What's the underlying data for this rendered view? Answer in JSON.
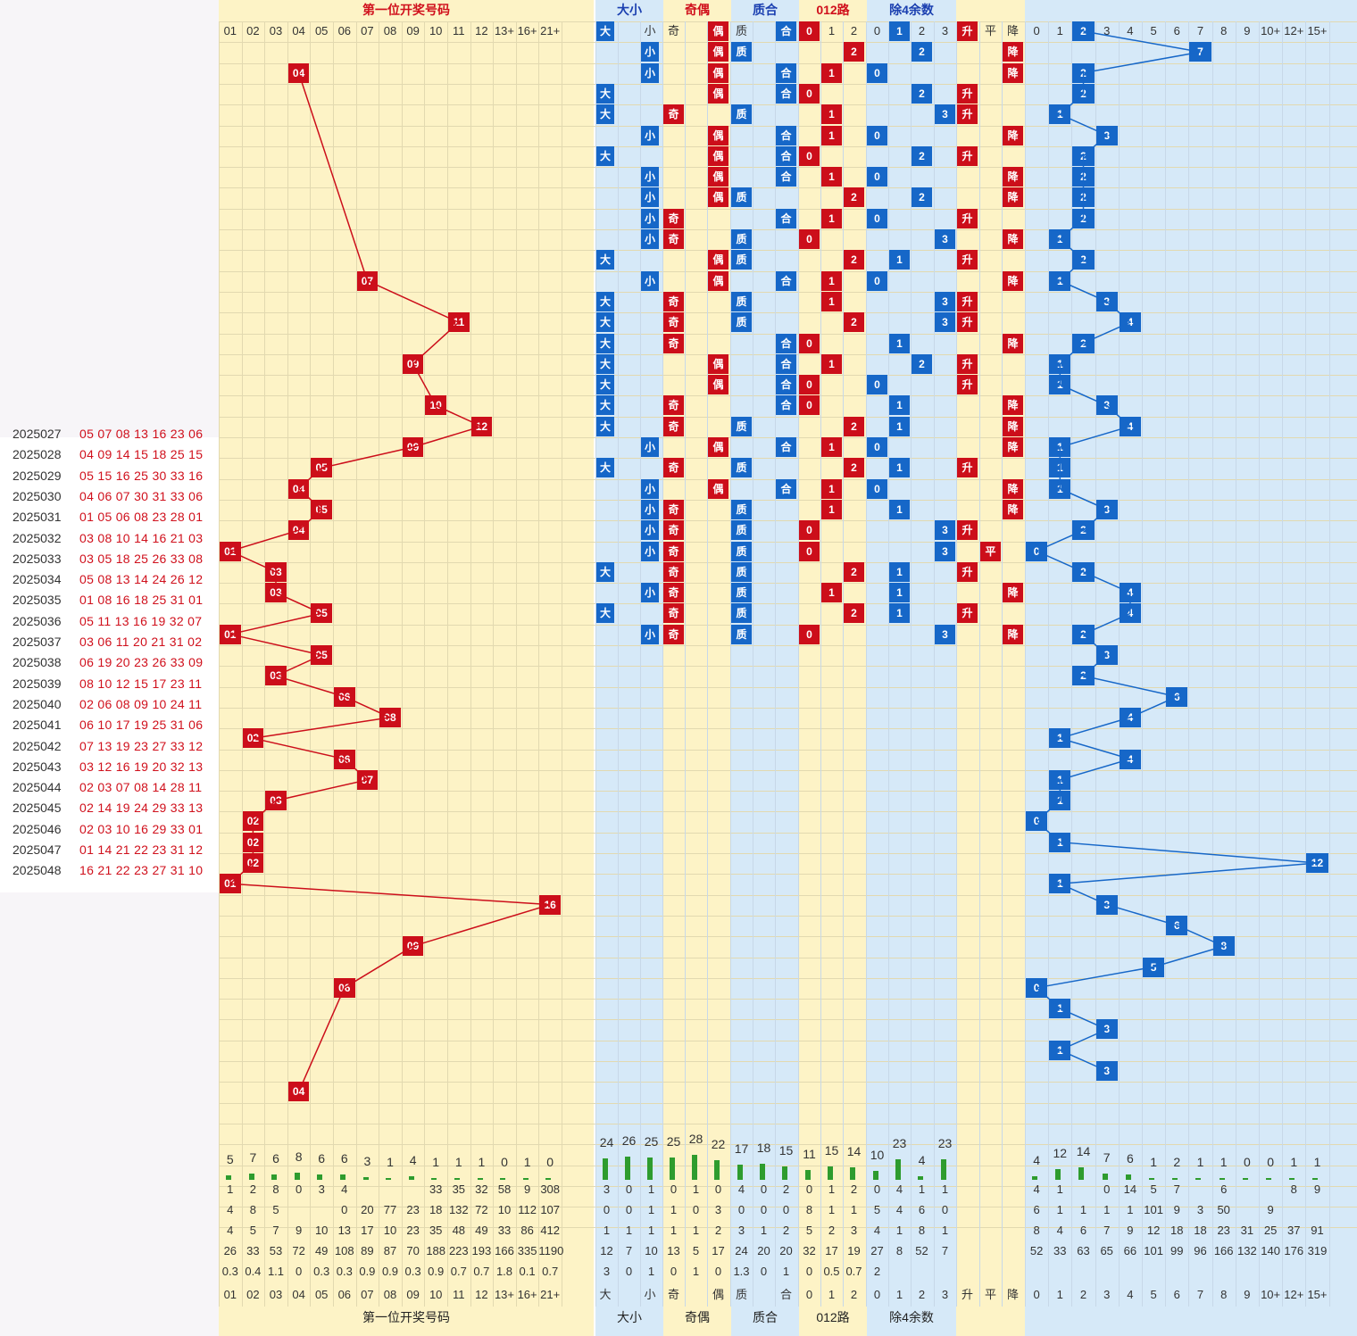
{
  "title": "第一位开奖号码",
  "section_headers": [
    "第一位开奖号码",
    "大小",
    "奇偶",
    "质合",
    "012路",
    "除4余数"
  ],
  "left_dates": [
    "2025027",
    "2025028",
    "2025029",
    "2025030",
    "2025031",
    "2025032",
    "2025033",
    "2025034",
    "2025035",
    "2025036",
    "2025037",
    "2025038",
    "2025039",
    "2025040",
    "2025041",
    "2025042",
    "2025043",
    "2025044",
    "2025045",
    "2025046",
    "2025047",
    "2025048"
  ],
  "left_nums": [
    "05 07 08 13 16 23 06",
    "04 09 14 15 18 25 15",
    "05 15 16 25 30 33 16",
    "04 06 07 30 31 33 06",
    "01 05 06 08 23 28 01",
    "03 08 10 14 16 21 03",
    "03 05 18 25 26 33 08",
    "05 08 13 14 24 26 12",
    "01 08 16 18 25 31 01",
    "05 11 13 16 19 32 07",
    "03 06 11 20 21 31 02",
    "06 19 20 23 26 33 09",
    "08 10 12 15 17 23 11",
    "02 06 08 09 10 24 11",
    "06 10 17 19 25 31 06",
    "07 13 19 23 27 33 12",
    "03 12 16 19 20 32 13",
    "02 03 07 08 14 28 11",
    "02 14 19 24 29 33 13",
    "02 03 10 16 29 33 01",
    "01 14 21 22 23 31 12",
    "16 21 22 23 27 31 10"
  ],
  "col_headers_a": [
    "01",
    "02",
    "03",
    "04",
    "05",
    "06",
    "07",
    "08",
    "09",
    "10",
    "11",
    "12",
    "13+",
    "16+",
    "21+"
  ],
  "col_headers_b": [
    "大",
    "",
    "小",
    "奇",
    "",
    "偶",
    "质",
    "",
    "合",
    "0",
    "1",
    "2",
    "0",
    "1",
    "2",
    "3",
    "升",
    "平",
    "降"
  ],
  "col_headers_c": [
    "0",
    "1",
    "2",
    "3",
    "4",
    "5",
    "6",
    "7",
    "8",
    "9",
    "10+",
    "12+",
    "15+"
  ],
  "stats_section_a": {
    "count_row": [
      "5",
      "7",
      "6",
      "8",
      "6",
      "6",
      "3",
      "1",
      "4",
      "1",
      "1",
      "1",
      "0",
      "1",
      "0"
    ],
    "rows": [
      [
        "1",
        "2",
        "8",
        "0",
        "3",
        "4",
        "",
        "",
        "",
        "33",
        "35",
        "32",
        "58",
        "9",
        "308"
      ],
      [
        "4",
        "8",
        "5",
        "",
        "",
        "0",
        "20",
        "77",
        "23",
        "18",
        "132",
        "72",
        "10",
        "112",
        "107"
      ],
      [
        "4",
        "5",
        "7",
        "9",
        "10",
        "13",
        "17",
        "10",
        "23",
        "35",
        "48",
        "49",
        "33",
        "86",
        "412"
      ],
      [
        "26",
        "33",
        "53",
        "72",
        "49",
        "108",
        "89",
        "87",
        "70",
        "188",
        "223",
        "193",
        "166",
        "335",
        "1190"
      ],
      [
        "0.3",
        "0.4",
        "1.1",
        "0",
        "0.3",
        "0.3",
        "0.9",
        "0.9",
        "0.3",
        "0.9",
        "0.7",
        "0.7",
        "1.8",
        "0.1",
        "0.7"
      ]
    ]
  },
  "stats_section_b": {
    "count_row": [
      "24",
      "26",
      "25",
      "25",
      "28",
      "22",
      "17",
      "18",
      "15",
      "11",
      "15",
      "14",
      "10",
      "23",
      "4",
      "23"
    ],
    "rows": [
      [
        "3",
        "0",
        "1",
        "0",
        "1",
        "0",
        "4",
        "0",
        "2",
        "0",
        "1",
        "2",
        "0",
        "4",
        "1",
        "1"
      ],
      [
        "0",
        "0",
        "1",
        "1",
        "0",
        "3",
        "0",
        "0",
        "0",
        "8",
        "1",
        "1",
        "5",
        "4",
        "6",
        "0"
      ],
      [
        "1",
        "1",
        "1",
        "1",
        "1",
        "2",
        "3",
        "1",
        "2",
        "5",
        "2",
        "3",
        "4",
        "1",
        "8",
        "1"
      ],
      [
        "12",
        "7",
        "10",
        "13",
        "5",
        "17",
        "24",
        "20",
        "20",
        "32",
        "17",
        "19",
        "27",
        "8",
        "52",
        "7"
      ],
      [
        "3",
        "0",
        "1",
        "0",
        "1",
        "0",
        "1.3",
        "0",
        "1",
        "0",
        "0.5",
        "0.7",
        "2",
        "",
        "",
        ""
      ]
    ]
  },
  "stats_section_c": {
    "count_row": [
      "4",
      "12",
      "14",
      "7",
      "6",
      "1",
      "2",
      "1",
      "1",
      "0",
      "0",
      "1",
      "1"
    ],
    "rows": [
      [
        "4",
        "1",
        "",
        "0",
        "14",
        "5",
        "7",
        "",
        "6",
        "",
        "",
        "8",
        "9"
      ],
      [
        "6",
        "1",
        "1",
        "1",
        "1",
        "101",
        "9",
        "3",
        "50",
        "",
        "9",
        "",
        ""
      ],
      [
        "8",
        "4",
        "6",
        "7",
        "9",
        "12",
        "18",
        "18",
        "23",
        "31",
        "25",
        "37",
        "91"
      ],
      [
        "52",
        "33",
        "63",
        "65",
        "66",
        "101",
        "99",
        "96",
        "166",
        "132",
        "140",
        "176",
        "319"
      ]
    ]
  },
  "bottom_labels": [
    "第一位开奖号码",
    "大小",
    "奇偶",
    "质合",
    "012路",
    "除4余数"
  ]
}
